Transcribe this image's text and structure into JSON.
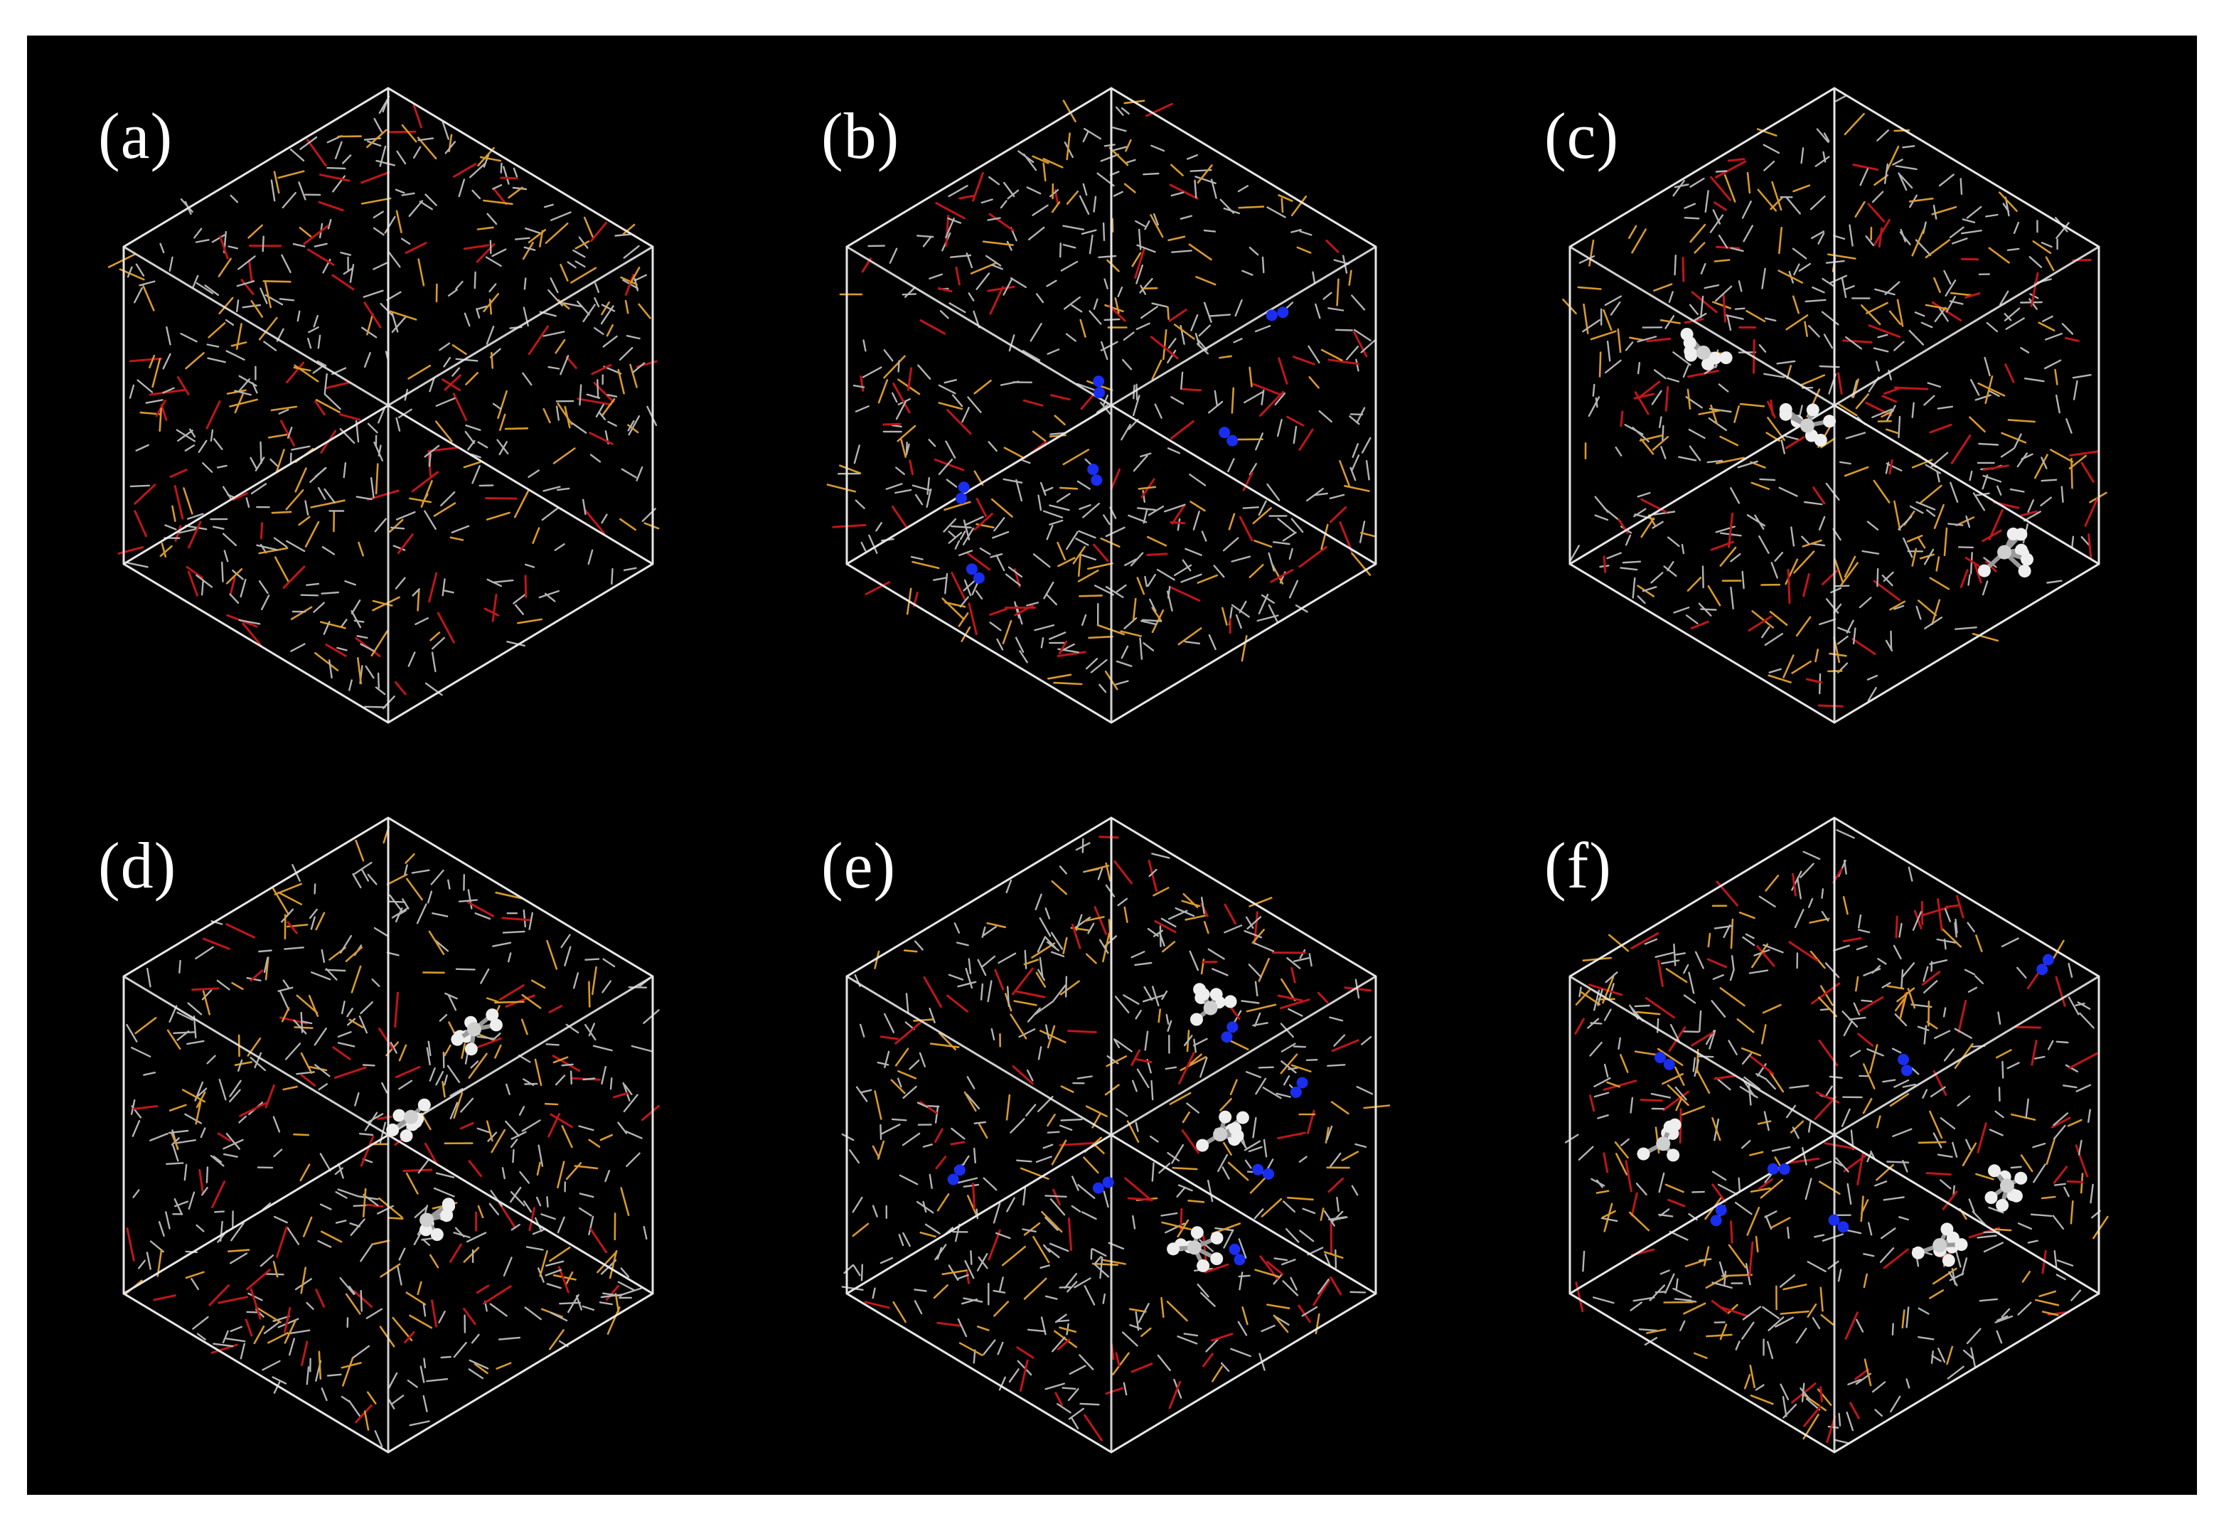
{
  "figure": {
    "background": "#000000",
    "colors": {
      "box_edge": "#e6e6e6",
      "bond_carbon": "#b4b4b4",
      "bond_silicon": "#d99a2b",
      "bond_oxygen": "#c0161a",
      "gas_nitrogen": "#1a2ef0",
      "gas_hydrocarbon": "#eeeeee"
    },
    "panels": [
      {
        "label": "(a)",
        "has_n2": false,
        "has_hydrocarbon": false
      },
      {
        "label": "(b)",
        "has_n2": true,
        "has_hydrocarbon": false
      },
      {
        "label": "(c)",
        "has_n2": false,
        "has_hydrocarbon": true
      },
      {
        "label": "(d)",
        "has_n2": false,
        "has_hydrocarbon": true
      },
      {
        "label": "(e)",
        "has_n2": true,
        "has_hydrocarbon": true
      },
      {
        "label": "(f)",
        "has_n2": true,
        "has_hydrocarbon": true
      }
    ]
  }
}
